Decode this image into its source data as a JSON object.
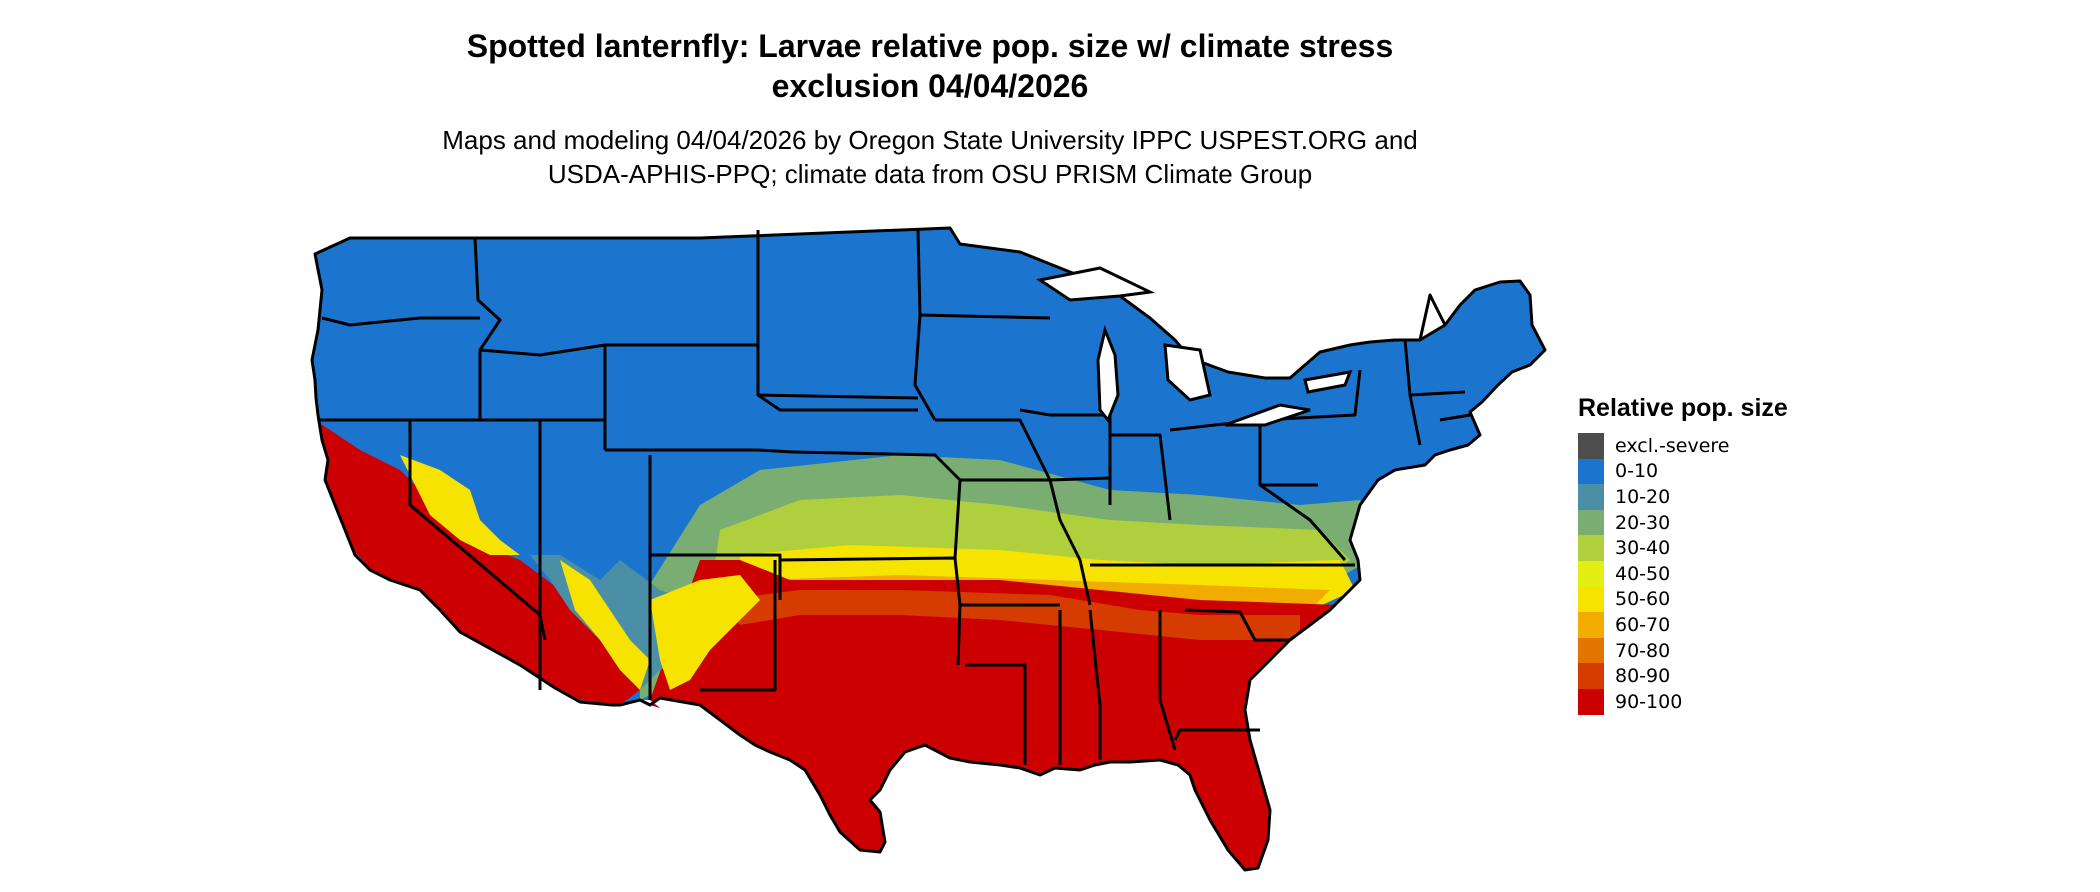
{
  "title": {
    "line1": "Spotted lanternfly: Larvae relative pop. size w/ climate stress",
    "line2": "exclusion 04/04/2026"
  },
  "subtitle": {
    "line1": "Maps and modeling 04/04/2026 by Oregon State University IPPC USPEST.ORG and",
    "line2": "USDA-APHIS-PPQ; climate data from OSU PRISM Climate Group"
  },
  "legend": {
    "title": "Relative pop. size",
    "items": [
      {
        "label": "excl.-severe",
        "color": "#4d4d4d"
      },
      {
        "label": "0-10",
        "color": "#1b75cf"
      },
      {
        "label": "10-20",
        "color": "#4a8fa6"
      },
      {
        "label": "20-30",
        "color": "#7aad72"
      },
      {
        "label": "30-40",
        "color": "#b0cf3c"
      },
      {
        "label": "40-50",
        "color": "#e3ef12"
      },
      {
        "label": "50-60",
        "color": "#f7e300"
      },
      {
        "label": "60-70",
        "color": "#f2ac00"
      },
      {
        "label": "70-80",
        "color": "#e37400"
      },
      {
        "label": "80-90",
        "color": "#d63c00"
      },
      {
        "label": "90-100",
        "color": "#cc0000"
      }
    ]
  },
  "map": {
    "region": "Contiguous United States",
    "overall_pattern": "Northern and western states mostly 0-10; a transition band of 10-60 across the central latitudes; southern states and the Pacific/Southwest lowlands 80-100",
    "state_outline_color": "#000000"
  }
}
